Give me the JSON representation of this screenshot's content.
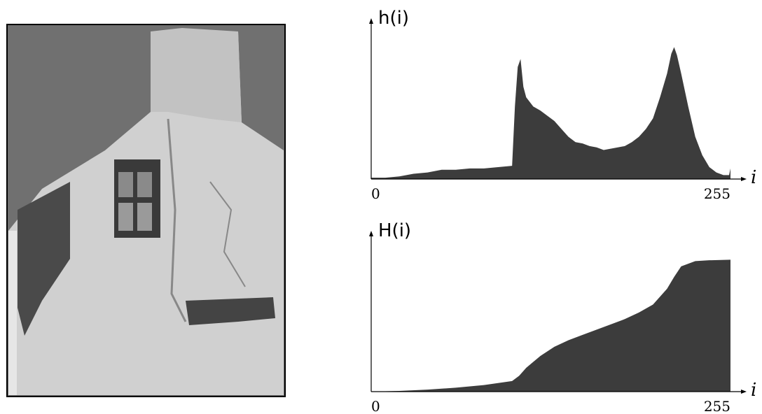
{
  "chart_data": [
    {
      "type": "area",
      "y_label": "h(i)",
      "x_label": "i",
      "x": [
        0,
        10,
        20,
        30,
        40,
        50,
        60,
        70,
        80,
        90,
        100,
        102,
        104,
        106,
        108,
        110,
        115,
        120,
        125,
        130,
        135,
        140,
        145,
        150,
        155,
        160,
        165,
        170,
        175,
        180,
        185,
        190,
        195,
        200,
        205,
        210,
        213,
        215,
        217,
        220,
        225,
        230,
        235,
        240,
        245,
        250,
        254,
        255
      ],
      "values": [
        1,
        1,
        2,
        4,
        5,
        7,
        7,
        8,
        8,
        9,
        10,
        55,
        85,
        91,
        70,
        62,
        55,
        52,
        48,
        44,
        38,
        32,
        28,
        27,
        25,
        24,
        22,
        23,
        24,
        25,
        28,
        32,
        38,
        46,
        62,
        80,
        95,
        100,
        94,
        80,
        55,
        32,
        18,
        9,
        5,
        3,
        3,
        8
      ],
      "xlim": [
        0,
        255
      ],
      "ylim": [
        0,
        105
      ],
      "xticks": [
        0,
        255
      ],
      "color": "#3c3c3c"
    },
    {
      "type": "area",
      "y_label": "H(i)",
      "x_label": "i",
      "x": [
        0,
        20,
        40,
        60,
        80,
        100,
        105,
        110,
        120,
        130,
        140,
        150,
        160,
        170,
        180,
        190,
        200,
        210,
        215,
        220,
        230,
        240,
        255
      ],
      "values": [
        0,
        0.5,
        1.5,
        3,
        5,
        8,
        12,
        18,
        27,
        34,
        39,
        43,
        47,
        51,
        55,
        60,
        66,
        78,
        87,
        95,
        99,
        99.6,
        100
      ],
      "xlim": [
        0,
        255
      ],
      "ylim": [
        0,
        105
      ],
      "xticks": [
        0,
        255
      ],
      "color": "#3c3c3c"
    }
  ]
}
